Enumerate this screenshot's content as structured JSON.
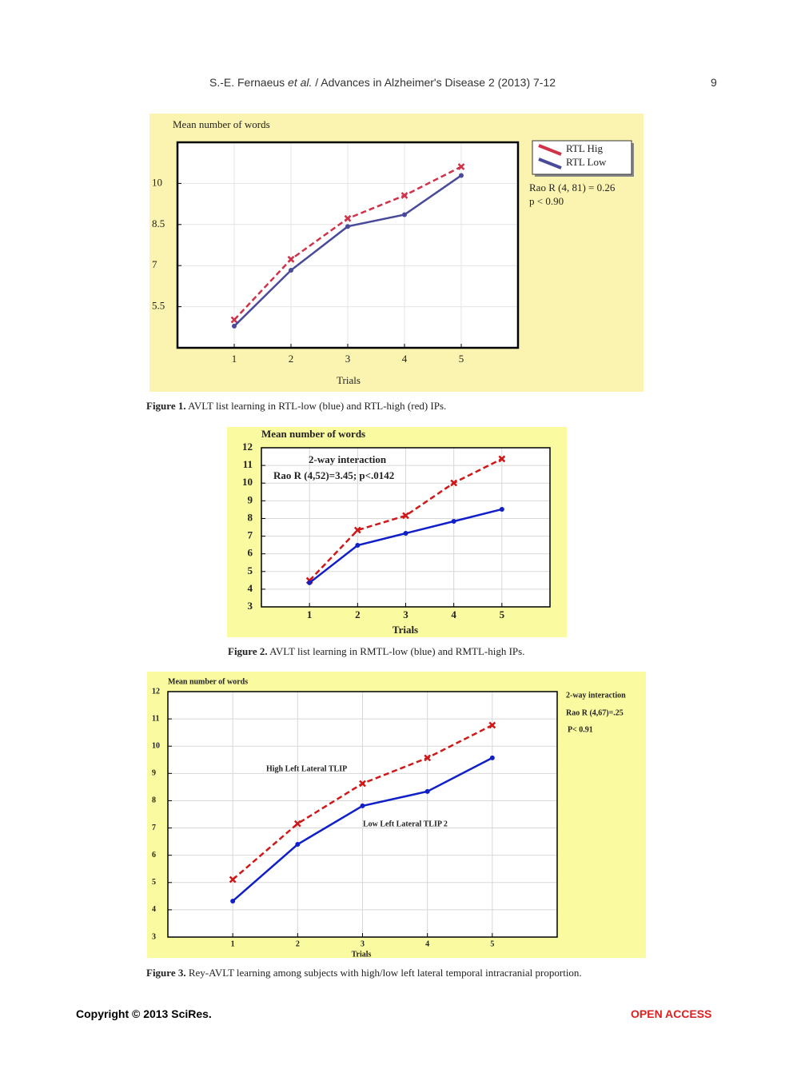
{
  "header": {
    "authors": "S.-E. Fernaeus",
    "etal": "et al.",
    "journal": "/ Advances in Alzheimer's Disease 2 (2013) 7-12",
    "page": "9"
  },
  "chart_data": [
    {
      "type": "line",
      "ylabel": "Mean number of words",
      "xlabel": "Trials",
      "x": [
        1,
        2,
        3,
        4,
        5
      ],
      "xlim": [
        0,
        6
      ],
      "xticks": [
        1,
        2,
        3,
        4,
        5
      ],
      "ylim": [
        4,
        11.5
      ],
      "yticks": [
        5.5,
        7,
        8.5,
        10
      ],
      "grid": true,
      "series": [
        {
          "name": "RTL Hig",
          "color": "#d0324a",
          "dashed": true,
          "marker": "x",
          "values": [
            5.02,
            7.23,
            8.72,
            9.56,
            10.61
          ]
        },
        {
          "name": "RTL Low",
          "color": "#4a4a9a",
          "dashed": false,
          "marker": "circle",
          "values": [
            4.79,
            6.83,
            8.43,
            8.86,
            10.29
          ]
        }
      ],
      "annotations": [
        "Rao R (4, 81) = 0.26",
        "p < 0.90"
      ]
    },
    {
      "type": "line",
      "ylabel": "Mean number of words",
      "xlabel": "Trials",
      "x": [
        1,
        2,
        3,
        4,
        5
      ],
      "xlim": [
        0,
        6
      ],
      "xticks": [
        1,
        2,
        3,
        4,
        5
      ],
      "ylim": [
        3,
        12
      ],
      "yticks": [
        3,
        4,
        5,
        6,
        7,
        8,
        9,
        10,
        11,
        12
      ],
      "grid": true,
      "series": [
        {
          "color": "#d01818",
          "dashed": true,
          "marker": "x",
          "values": [
            4.49,
            7.34,
            8.16,
            10.01,
            11.37
          ]
        },
        {
          "color": "#1020c8",
          "dashed": false,
          "marker": "circle",
          "values": [
            4.36,
            6.48,
            7.16,
            7.84,
            8.52
          ]
        }
      ],
      "annotations": [
        "2-way interaction",
        "Rao R (4,52)=3.45;  p<.0142"
      ]
    },
    {
      "type": "line",
      "ylabel": "Mean number of words",
      "xlabel": "Trials",
      "x": [
        1,
        2,
        3,
        4,
        5
      ],
      "xlim": [
        0,
        6
      ],
      "xticks": [
        1,
        2,
        3,
        4,
        5
      ],
      "ylim": [
        3,
        12
      ],
      "yticks": [
        3,
        4,
        5,
        6,
        7,
        8,
        9,
        10,
        11,
        12
      ],
      "grid": true,
      "series": [
        {
          "color": "#d01818",
          "dashed": true,
          "marker": "x",
          "values": [
            5.11,
            7.16,
            8.63,
            9.57,
            10.77
          ]
        },
        {
          "color": "#1020c8",
          "dashed": false,
          "marker": "circle",
          "values": [
            4.32,
            6.4,
            7.81,
            8.34,
            9.57
          ]
        }
      ],
      "annotations": [
        "2-way interaction",
        "Rao R (4,67)=.25",
        "P< 0.91",
        "High Left Lateral TLIP",
        "Low Left Lateral TLIP    2"
      ]
    }
  ],
  "captions": [
    {
      "label": "Figure 1.",
      "text": "AVLT list learning in RTL-low (blue) and RTL-high (red) IPs."
    },
    {
      "label": "Figure 2.",
      "text": "AVLT list learning in RMTL-low (blue) and RMTL-high IPs."
    },
    {
      "label": "Figure 3.",
      "text": "Rey-AVLT learning among subjects with high/low left lateral temporal intracranial proportion."
    }
  ],
  "footer": {
    "copyright": "Copyright © 2013 SciRes.",
    "access": "OPEN ACCESS"
  }
}
